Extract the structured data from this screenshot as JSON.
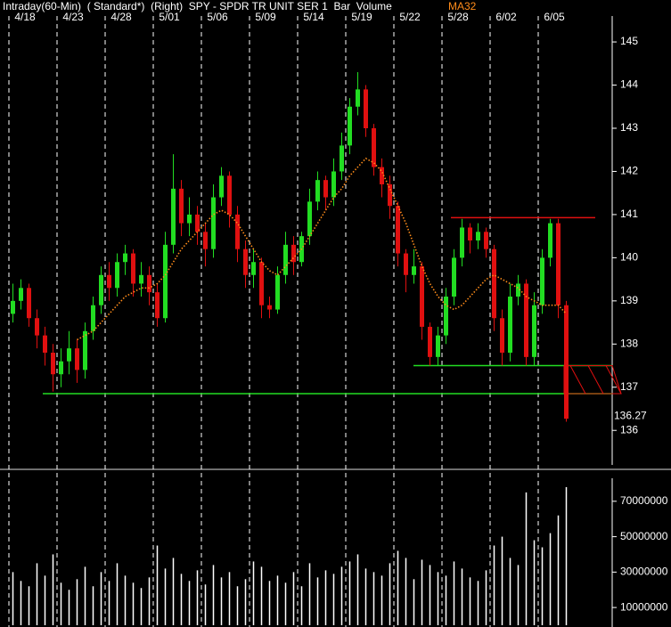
{
  "chart_data": [
    {
      "type": "candlestick",
      "title": "Intraday(60-Min)  ( Standard*)  (Right)  SPY - SPDR TR UNIT SER 1  Bar  Volume",
      "categories": [
        null,
        null,
        "4/18",
        null,
        null,
        null,
        null,
        null,
        "4/23",
        null,
        null,
        null,
        null,
        null,
        "4/28",
        null,
        null,
        null,
        null,
        null,
        "5/01",
        null,
        null,
        null,
        null,
        null,
        "5/06",
        null,
        null,
        null,
        null,
        null,
        "5/09",
        null,
        null,
        null,
        null,
        null,
        "5/14",
        null,
        null,
        null,
        null,
        null,
        "5/19",
        null,
        null,
        null,
        null,
        null,
        "5/22",
        null,
        null,
        null,
        null,
        null,
        "5/28",
        null,
        null,
        null,
        null,
        null,
        "6/02",
        null,
        null,
        null,
        null,
        null,
        "6/05",
        null
      ],
      "open": [
        138.7,
        139.0,
        139.3,
        138.6,
        138.2,
        137.8,
        137.3,
        137.6,
        137.9,
        137.4,
        138.3,
        138.9,
        139.6,
        139.3,
        139.9,
        140.1,
        139.4,
        139.6,
        139.2,
        138.6,
        140.3,
        141.6,
        140.8,
        141.0,
        140.6,
        140.2,
        141.4,
        141.9,
        141.0,
        140.2,
        139.6,
        139.9,
        138.9,
        138.8,
        139.6,
        140.3,
        139.9,
        140.5,
        141.3,
        141.8,
        141.4,
        142.0,
        142.6,
        143.5,
        143.9,
        143.0,
        142.1,
        141.7,
        141.2,
        140.1,
        139.6,
        139.8,
        138.4,
        137.7,
        138.2,
        139.1,
        140.0,
        140.7,
        140.4,
        140.6,
        140.2,
        138.6,
        137.8,
        139.1,
        139.4,
        137.7,
        138.9,
        140.0,
        140.8,
        138.9
      ],
      "high": [
        139.4,
        139.5,
        139.4,
        138.8,
        138.4,
        138.0,
        137.9,
        138.3,
        138.1,
        138.5,
        139.1,
        139.8,
        139.9,
        140.1,
        140.3,
        140.2,
        139.9,
        139.8,
        139.4,
        140.6,
        142.4,
        141.8,
        141.4,
        141.2,
        140.8,
        141.7,
        142.1,
        142.0,
        141.2,
        140.4,
        140.2,
        140.0,
        139.1,
        139.8,
        140.6,
        140.5,
        140.6,
        141.6,
        142.0,
        141.9,
        142.3,
        142.9,
        143.7,
        144.3,
        144.0,
        143.1,
        142.3,
        141.9,
        141.3,
        140.2,
        140.2,
        139.9,
        138.5,
        138.4,
        139.3,
        140.2,
        140.9,
        140.8,
        140.8,
        140.7,
        140.3,
        138.8,
        139.4,
        139.6,
        139.5,
        139.2,
        140.2,
        140.9,
        140.9,
        139.0
      ],
      "low": [
        138.5,
        138.8,
        138.4,
        137.9,
        137.5,
        136.9,
        137.0,
        137.3,
        137.1,
        137.2,
        138.1,
        138.7,
        139.0,
        139.1,
        139.6,
        139.1,
        139.1,
        138.9,
        138.4,
        138.5,
        140.1,
        140.5,
        140.5,
        140.3,
        139.8,
        140.0,
        141.2,
        140.7,
        139.9,
        139.3,
        139.3,
        138.6,
        138.6,
        138.7,
        139.4,
        139.6,
        139.8,
        140.3,
        141.1,
        141.1,
        141.2,
        141.8,
        142.4,
        143.3,
        142.8,
        141.9,
        141.4,
        140.9,
        139.8,
        139.2,
        139.4,
        138.1,
        137.5,
        137.5,
        138.0,
        138.9,
        139.8,
        140.1,
        140.2,
        140.0,
        138.3,
        137.5,
        137.6,
        138.9,
        137.5,
        137.5,
        138.7,
        139.8,
        138.6,
        136.2
      ],
      "close": [
        139.0,
        139.3,
        138.6,
        138.2,
        137.8,
        137.3,
        137.6,
        137.9,
        137.4,
        138.3,
        138.9,
        139.6,
        139.3,
        139.9,
        140.1,
        139.4,
        139.6,
        139.2,
        138.6,
        140.3,
        141.6,
        140.8,
        141.0,
        140.6,
        140.2,
        141.4,
        141.9,
        141.0,
        140.2,
        139.6,
        139.9,
        138.9,
        138.8,
        139.6,
        140.3,
        139.9,
        140.5,
        141.3,
        141.8,
        141.4,
        142.0,
        142.6,
        143.5,
        143.9,
        143.0,
        142.1,
        141.7,
        141.2,
        140.1,
        139.6,
        139.8,
        138.4,
        137.7,
        138.2,
        139.1,
        140.0,
        140.7,
        140.4,
        140.6,
        140.2,
        138.6,
        137.8,
        139.1,
        139.4,
        137.7,
        138.9,
        140.0,
        140.8,
        138.9,
        136.27
      ],
      "up_color": "#22dd22",
      "down_color": "#e01010",
      "ma": {
        "name": "MA32",
        "color": "#ff8c1a",
        "values": [
          null,
          null,
          null,
          null,
          null,
          null,
          null,
          null,
          138.1,
          138.2,
          138.3,
          138.5,
          138.7,
          138.9,
          139.1,
          139.2,
          139.3,
          139.3,
          139.4,
          139.6,
          139.9,
          140.2,
          140.4,
          140.6,
          140.8,
          141.0,
          141.1,
          141.0,
          140.8,
          140.5,
          140.2,
          139.9,
          139.7,
          139.6,
          139.8,
          140.0,
          140.2,
          140.5,
          140.8,
          141.1,
          141.4,
          141.6,
          141.9,
          142.1,
          142.3,
          142.2,
          142.0,
          141.6,
          141.2,
          140.8,
          140.3,
          139.8,
          139.4,
          139.1,
          138.9,
          138.8,
          138.9,
          139.1,
          139.3,
          139.5,
          139.6,
          139.5,
          139.4,
          139.3,
          139.1,
          139.0,
          138.9,
          138.9,
          138.9,
          138.7
        ]
      },
      "levels": [
        {
          "value": 140.93,
          "color": "#e01010"
        },
        {
          "value": 137.5,
          "color": "#22dd22"
        },
        {
          "value": 136.85,
          "color": "#22dd22"
        }
      ],
      "ylim": [
        135.2,
        145.6
      ],
      "yticks": [
        136,
        137,
        138,
        139,
        140,
        141,
        142,
        143,
        144,
        145
      ]
    },
    {
      "type": "bar",
      "values": [
        30000000,
        25000000,
        22000000,
        35000000,
        28000000,
        40000000,
        24000000,
        20000000,
        26000000,
        33000000,
        22000000,
        30000000,
        25000000,
        35000000,
        28000000,
        24000000,
        21000000,
        27000000,
        45000000,
        32000000,
        38000000,
        29000000,
        25000000,
        31000000,
        23000000,
        34000000,
        27000000,
        30000000,
        22000000,
        26000000,
        36000000,
        33000000,
        25000000,
        28000000,
        24000000,
        30000000,
        22000000,
        35000000,
        27000000,
        31000000,
        29000000,
        33000000,
        36000000,
        40000000,
        32000000,
        30000000,
        28000000,
        35000000,
        42000000,
        38000000,
        26000000,
        37000000,
        34000000,
        30000000,
        28000000,
        36000000,
        32000000,
        27000000,
        25000000,
        31000000,
        45000000,
        50000000,
        38000000,
        34000000,
        75000000,
        48000000,
        44000000,
        52000000,
        62000000,
        78000000
      ],
      "color": "#ffffff",
      "ylim": [
        0,
        84000000
      ],
      "yticks": [
        10000000,
        30000000,
        50000000,
        70000000
      ]
    }
  ]
}
